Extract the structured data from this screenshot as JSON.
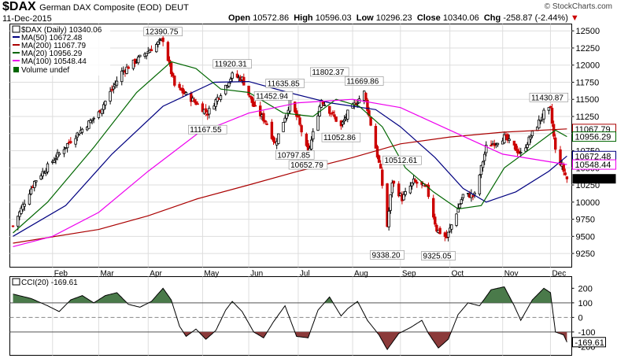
{
  "header": {
    "symbol": "$DAX",
    "name": "German DAX Composite (EOD)",
    "exchange": "DEUT",
    "date": "11-Dec-2015",
    "watermark": "© StockCharts.com",
    "open_label": "Open",
    "open": "10572.86",
    "high_label": "High",
    "high": "10596.03",
    "low_label": "Low",
    "low": "10296.23",
    "close_label": "Close",
    "close": "10340.06",
    "chg_label": "Chg",
    "chg": "-258.87 (-2.44%)",
    "chg_marker": "▼"
  },
  "legend": {
    "price": "$DAX (Daily) 10340.06",
    "ma50": "MA(50) 10672.48",
    "ma200": "MA(200) 11067.79",
    "ma20": "MA(20) 10956.29",
    "ma100": "MA(100) 10548.44",
    "volume": "Volume undef"
  },
  "cci_legend": "CCI(20) -169.61",
  "colors": {
    "up": "#000000",
    "down": "#cc0000",
    "ma50": "#000080",
    "ma200": "#aa0000",
    "ma20": "#006600",
    "ma100": "#ee00ee",
    "cci_pos_fill": "#4a7a4a",
    "cci_neg_fill": "#8b3a3a",
    "last_price_bg": "#000000"
  },
  "chart_data": [
    {
      "type": "line",
      "subtype": "candlestick",
      "title": "German DAX Composite (EOD)",
      "y_axis_side": "right",
      "ylim": [
        9050,
        12600
      ],
      "yticks": [
        9250,
        9500,
        9750,
        10000,
        10250,
        10500,
        10750,
        11000,
        11250,
        11500,
        11750,
        12000,
        12250,
        12500
      ],
      "months": [
        "Feb",
        "Mar",
        "Apr",
        "May",
        "Jun",
        "Jul",
        "Aug",
        "Sep",
        "Oct",
        "Nov",
        "Dec"
      ],
      "month_starts": [
        "2015-02-02",
        "2015-03-02",
        "2015-04-01",
        "2015-05-04",
        "2015-06-01",
        "2015-07-01",
        "2015-08-03",
        "2015-09-01",
        "2015-10-01",
        "2015-11-02",
        "2015-12-01"
      ],
      "date_range": [
        "2015-01-09",
        "2015-12-11"
      ],
      "close_anchors": [
        {
          "date": "2015-01-09",
          "value": 9650
        },
        {
          "date": "2015-01-22",
          "value": 10300
        },
        {
          "date": "2015-02-13",
          "value": 10900
        },
        {
          "date": "2015-03-02",
          "value": 11300
        },
        {
          "date": "2015-03-16",
          "value": 11900
        },
        {
          "date": "2015-04-10",
          "value": 12375
        },
        {
          "date": "2015-04-17",
          "value": 11700
        },
        {
          "date": "2015-04-30",
          "value": 11450
        },
        {
          "date": "2015-05-07",
          "value": 11300
        },
        {
          "date": "2015-05-22",
          "value": 11850
        },
        {
          "date": "2015-05-28",
          "value": 11800
        },
        {
          "date": "2015-06-04",
          "value": 11400
        },
        {
          "date": "2015-06-12",
          "value": 11150
        },
        {
          "date": "2015-06-17",
          "value": 10850
        },
        {
          "date": "2015-06-26",
          "value": 11450
        },
        {
          "date": "2015-07-01",
          "value": 11200
        },
        {
          "date": "2015-07-07",
          "value": 10700
        },
        {
          "date": "2015-07-15",
          "value": 11500
        },
        {
          "date": "2015-07-27",
          "value": 11100
        },
        {
          "date": "2015-07-31",
          "value": 11300
        },
        {
          "date": "2015-08-10",
          "value": 11600
        },
        {
          "date": "2015-08-20",
          "value": 10450
        },
        {
          "date": "2015-08-24",
          "value": 9650
        },
        {
          "date": "2015-08-27",
          "value": 10300
        },
        {
          "date": "2015-09-02",
          "value": 10050
        },
        {
          "date": "2015-09-09",
          "value": 10300
        },
        {
          "date": "2015-09-17",
          "value": 10200
        },
        {
          "date": "2015-09-23",
          "value": 9600
        },
        {
          "date": "2015-09-29",
          "value": 9480
        },
        {
          "date": "2015-10-09",
          "value": 10100
        },
        {
          "date": "2015-10-16",
          "value": 10100
        },
        {
          "date": "2015-10-23",
          "value": 10800
        },
        {
          "date": "2015-11-03",
          "value": 10950
        },
        {
          "date": "2015-11-13",
          "value": 10700
        },
        {
          "date": "2015-11-27",
          "value": 11300
        },
        {
          "date": "2015-12-01",
          "value": 11350
        },
        {
          "date": "2015-12-04",
          "value": 10750
        },
        {
          "date": "2015-12-11",
          "value": 10340
        }
      ],
      "annotations": [
        {
          "label": "12390.75",
          "date": "2015-04-10",
          "value": 12390.75,
          "pos": "above"
        },
        {
          "label": "11920.31",
          "date": "2015-05-22",
          "value": 11920.31,
          "pos": "above"
        },
        {
          "label": "11635.85",
          "date": "2015-06-23",
          "value": 11635.85,
          "pos": "above"
        },
        {
          "label": "11452.94",
          "date": "2015-06-16",
          "value": 11452.94,
          "pos": "above"
        },
        {
          "label": "11802.37",
          "date": "2015-07-20",
          "value": 11802.37,
          "pos": "above"
        },
        {
          "label": "11669.86",
          "date": "2015-08-10",
          "value": 11669.86,
          "pos": "above"
        },
        {
          "label": "11167.55",
          "date": "2015-05-07",
          "value": 11167.55,
          "pos": "below"
        },
        {
          "label": "10797.85",
          "date": "2015-06-29",
          "value": 10797.85,
          "pos": "below"
        },
        {
          "label": "10652.79",
          "date": "2015-07-07",
          "value": 10652.79,
          "pos": "below"
        },
        {
          "label": "11052.86",
          "date": "2015-07-27",
          "value": 11052.86,
          "pos": "below"
        },
        {
          "label": "10512.61",
          "date": "2015-09-02",
          "value": 10512.61,
          "pos": "above"
        },
        {
          "label": "9338.20",
          "date": "2015-08-24",
          "value": 9338.2,
          "pos": "below"
        },
        {
          "label": "9325.05",
          "date": "2015-09-24",
          "value": 9325.05,
          "pos": "below"
        },
        {
          "label": "11430.87",
          "date": "2015-11-30",
          "value": 11430.87,
          "pos": "above"
        }
      ],
      "series": [
        {
          "name": "MA(50)",
          "color": "#000080",
          "last": 10672.48,
          "points": [
            [
              "2015-01-09",
              9500
            ],
            [
              "2015-02-10",
              9950
            ],
            [
              "2015-03-10",
              10700
            ],
            [
              "2015-04-10",
              11400
            ],
            [
              "2015-05-11",
              11750
            ],
            [
              "2015-06-01",
              11760
            ],
            [
              "2015-06-25",
              11600
            ],
            [
              "2015-07-20",
              11450
            ],
            [
              "2015-08-17",
              11350
            ],
            [
              "2015-09-01",
              11100
            ],
            [
              "2015-09-22",
              10650
            ],
            [
              "2015-10-09",
              10200
            ],
            [
              "2015-10-23",
              10000
            ],
            [
              "2015-11-10",
              10150
            ],
            [
              "2015-11-30",
              10450
            ],
            [
              "2015-12-11",
              10672
            ]
          ]
        },
        {
          "name": "MA(200)",
          "color": "#aa0000",
          "last": 11067.79,
          "points": [
            [
              "2015-01-09",
              9400
            ],
            [
              "2015-03-02",
              9600
            ],
            [
              "2015-04-01",
              9800
            ],
            [
              "2015-05-01",
              10050
            ],
            [
              "2015-06-01",
              10250
            ],
            [
              "2015-07-01",
              10450
            ],
            [
              "2015-08-03",
              10650
            ],
            [
              "2015-09-01",
              10850
            ],
            [
              "2015-10-01",
              10950
            ],
            [
              "2015-11-02",
              11020
            ],
            [
              "2015-12-11",
              11068
            ]
          ]
        },
        {
          "name": "MA(20)",
          "color": "#006600",
          "last": 10956.29,
          "points": [
            [
              "2015-01-09",
              9550
            ],
            [
              "2015-01-30",
              10000
            ],
            [
              "2015-02-27",
              10800
            ],
            [
              "2015-03-25",
              11600
            ],
            [
              "2015-04-15",
              12050
            ],
            [
              "2015-04-30",
              11950
            ],
            [
              "2015-05-15",
              11650
            ],
            [
              "2015-06-01",
              11600
            ],
            [
              "2015-06-22",
              11300
            ],
            [
              "2015-07-10",
              11250
            ],
            [
              "2015-07-24",
              11500
            ],
            [
              "2015-08-07",
              11400
            ],
            [
              "2015-08-21",
              11100
            ],
            [
              "2015-09-04",
              10500
            ],
            [
              "2015-09-21",
              10150
            ],
            [
              "2015-10-06",
              9900
            ],
            [
              "2015-10-20",
              9950
            ],
            [
              "2015-11-03",
              10500
            ],
            [
              "2015-11-20",
              10800
            ],
            [
              "2015-12-04",
              11050
            ],
            [
              "2015-12-11",
              10956
            ]
          ]
        },
        {
          "name": "MA(100)",
          "color": "#ee00ee",
          "last": 10548.44,
          "points": [
            [
              "2015-01-09",
              9350
            ],
            [
              "2015-02-02",
              9500
            ],
            [
              "2015-03-02",
              9850
            ],
            [
              "2015-04-01",
              10450
            ],
            [
              "2015-05-01",
              11000
            ],
            [
              "2015-06-01",
              11300
            ],
            [
              "2015-07-01",
              11450
            ],
            [
              "2015-08-03",
              11500
            ],
            [
              "2015-09-01",
              11380
            ],
            [
              "2015-10-01",
              11050
            ],
            [
              "2015-11-02",
              10700
            ],
            [
              "2015-12-11",
              10548
            ]
          ]
        }
      ]
    },
    {
      "type": "line",
      "title": "CCI(20)",
      "last": -169.61,
      "ylim": [
        -260,
        280
      ],
      "yticks": [
        200,
        100,
        0,
        -100,
        -200
      ],
      "reference_lines": [
        100,
        0,
        -100
      ],
      "points": [
        [
          "2015-01-09",
          160
        ],
        [
          "2015-01-20",
          130
        ],
        [
          "2015-01-30",
          80
        ],
        [
          "2015-02-06",
          40
        ],
        [
          "2015-02-13",
          120
        ],
        [
          "2015-02-20",
          150
        ],
        [
          "2015-02-27",
          100
        ],
        [
          "2015-03-06",
          150
        ],
        [
          "2015-03-13",
          170
        ],
        [
          "2015-03-20",
          90
        ],
        [
          "2015-03-27",
          70
        ],
        [
          "2015-04-03",
          110
        ],
        [
          "2015-04-10",
          200
        ],
        [
          "2015-04-15",
          120
        ],
        [
          "2015-04-20",
          -60
        ],
        [
          "2015-04-24",
          -130
        ],
        [
          "2015-04-30",
          -80
        ],
        [
          "2015-05-06",
          -150
        ],
        [
          "2015-05-12",
          -90
        ],
        [
          "2015-05-18",
          50
        ],
        [
          "2015-05-22",
          110
        ],
        [
          "2015-05-28",
          40
        ],
        [
          "2015-06-04",
          -100
        ],
        [
          "2015-06-10",
          -140
        ],
        [
          "2015-06-16",
          -30
        ],
        [
          "2015-06-23",
          80
        ],
        [
          "2015-06-30",
          -130
        ],
        [
          "2015-07-07",
          -140
        ],
        [
          "2015-07-13",
          50
        ],
        [
          "2015-07-20",
          140
        ],
        [
          "2015-07-27",
          10
        ],
        [
          "2015-07-31",
          60
        ],
        [
          "2015-08-06",
          110
        ],
        [
          "2015-08-12",
          -20
        ],
        [
          "2015-08-19",
          -120
        ],
        [
          "2015-08-24",
          -220
        ],
        [
          "2015-08-31",
          -110
        ],
        [
          "2015-09-07",
          -70
        ],
        [
          "2015-09-14",
          -20
        ],
        [
          "2015-09-18",
          -110
        ],
        [
          "2015-09-24",
          -210
        ],
        [
          "2015-09-30",
          -150
        ],
        [
          "2015-10-06",
          20
        ],
        [
          "2015-10-12",
          100
        ],
        [
          "2015-10-19",
          80
        ],
        [
          "2015-10-26",
          190
        ],
        [
          "2015-11-03",
          210
        ],
        [
          "2015-11-09",
          80
        ],
        [
          "2015-11-13",
          -20
        ],
        [
          "2015-11-20",
          120
        ],
        [
          "2015-11-27",
          200
        ],
        [
          "2015-12-01",
          170
        ],
        [
          "2015-12-04",
          -100
        ],
        [
          "2015-12-09",
          -120
        ],
        [
          "2015-12-11",
          -170
        ]
      ]
    }
  ]
}
